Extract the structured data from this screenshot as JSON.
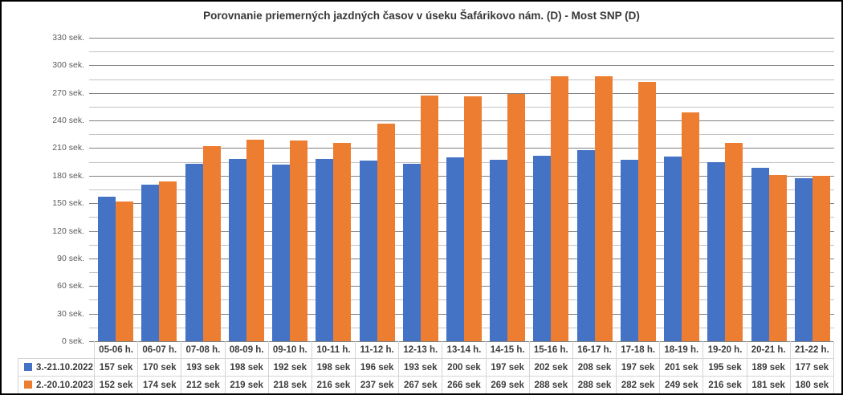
{
  "chart_data": {
    "type": "bar",
    "title": "Porovnanie priemerných jazdných časov v úseku Šafárikovo nám. (D) - Most SNP (D)",
    "categories": [
      "05-06 h.",
      "06-07 h.",
      "07-08 h.",
      "08-09 h.",
      "09-10 h.",
      "10-11 h.",
      "11-12 h.",
      "12-13 h.",
      "13-14 h.",
      "14-15 h.",
      "15-16 h.",
      "16-17 h.",
      "17-18 h.",
      "18-19 h.",
      "19-20 h.",
      "20-21 h.",
      "21-22 h."
    ],
    "series": [
      {
        "name": "3.-21.10.2022",
        "color": "#4472C4",
        "values": [
          157,
          170,
          193,
          198,
          192,
          198,
          196,
          193,
          200,
          197,
          202,
          208,
          197,
          201,
          195,
          189,
          177
        ]
      },
      {
        "name": "2.-20.10.2023",
        "color": "#ED7D31",
        "values": [
          152,
          174,
          212,
          219,
          218,
          216,
          237,
          267,
          266,
          269,
          288,
          288,
          282,
          249,
          216,
          181,
          180
        ]
      }
    ],
    "xlabel": "",
    "ylabel": "",
    "ylim": [
      0,
      330
    ],
    "ytick_step": 30,
    "yminor_step": 15,
    "ytick_labels": [
      "0 sek.",
      "30 sek.",
      "60 sek.",
      "90 sek.",
      "120 sek.",
      "150 sek.",
      "180 sek.",
      "210 sek.",
      "240 sek.",
      "270 sek.",
      "300 sek.",
      "330 sek."
    ],
    "value_suffix": " sek",
    "grid": true,
    "legend_position": "table-left"
  },
  "colors": {
    "series_2022": "#4472C4",
    "series_2023": "#ED7D31",
    "gridline_major": "#808080",
    "gridline_minor": "#C3C3C3",
    "axis_text": "#595959",
    "table_text": "#3C3C3C",
    "table_border": "#D4D4D4",
    "title_text": "#373737",
    "frame_border": "#000000",
    "background": "#FFFFFF"
  }
}
